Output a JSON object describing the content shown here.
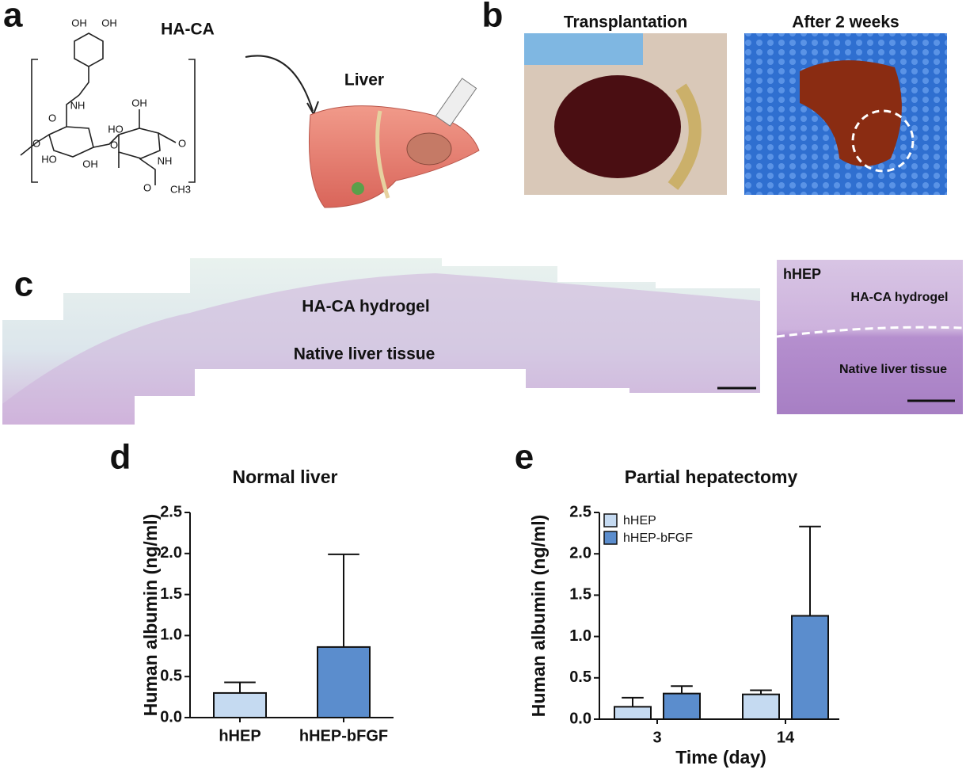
{
  "panels": {
    "a": {
      "label": "a",
      "title": "HA-CA",
      "organ": "Liver",
      "structure_labels": [
        "OH",
        "OH",
        "NH",
        "O",
        "O",
        "HO",
        "OH",
        "OH",
        "HO",
        "O",
        "O",
        "NH",
        "O",
        "CH3"
      ]
    },
    "b": {
      "label": "b",
      "left_title": "Transplantation",
      "right_title": "After 2 weeks"
    },
    "c": {
      "label": "c",
      "hydrogel": "HA-CA hydrogel",
      "native": "Native liver tissue",
      "inset_title": "hHEP",
      "inset_hydrogel": "HA-CA hydrogel",
      "inset_native": "Native liver tissue"
    },
    "d": {
      "label": "d"
    },
    "e": {
      "label": "e"
    }
  },
  "chart_data": [
    {
      "type": "bar",
      "title": "Normal liver",
      "ylabel": "Human albumin (ng/ml)",
      "categories": [
        "hHEP",
        "hHEP-bFGF"
      ],
      "values": [
        0.3,
        0.86
      ],
      "errors": [
        0.13,
        1.13
      ],
      "colors": [
        "#c5daf1",
        "#5b8dcd"
      ],
      "ylim": [
        0,
        2.5
      ],
      "yticks": [
        {
          "value": 0,
          "label": "0.0"
        },
        0.5,
        {
          "value": 1,
          "label": "1.0"
        },
        1.5,
        {
          "value": 2,
          "label": "2.0"
        },
        2.5
      ]
    },
    {
      "type": "bar",
      "title": "Partial hepatectomy",
      "ylabel": "Human albumin (ng/ml)",
      "xlabel": "Time (day)",
      "categories": [
        "3",
        "14"
      ],
      "series": [
        {
          "name": "hHEP",
          "color": "#c5daf1",
          "values": [
            0.15,
            0.3
          ],
          "errors": [
            0.11,
            0.05
          ]
        },
        {
          "name": "hHEP-bFGF",
          "color": "#5b8dcd",
          "values": [
            0.31,
            1.25
          ],
          "errors": [
            0.09,
            1.08
          ]
        }
      ],
      "legend": "upper left",
      "ylim": [
        0,
        2.5
      ],
      "yticks": [
        {
          "value": 0,
          "label": "0.0"
        },
        0.5,
        {
          "value": 1,
          "label": "1.0"
        },
        1.5,
        {
          "value": 2,
          "label": "2.0"
        },
        2.5
      ]
    }
  ]
}
